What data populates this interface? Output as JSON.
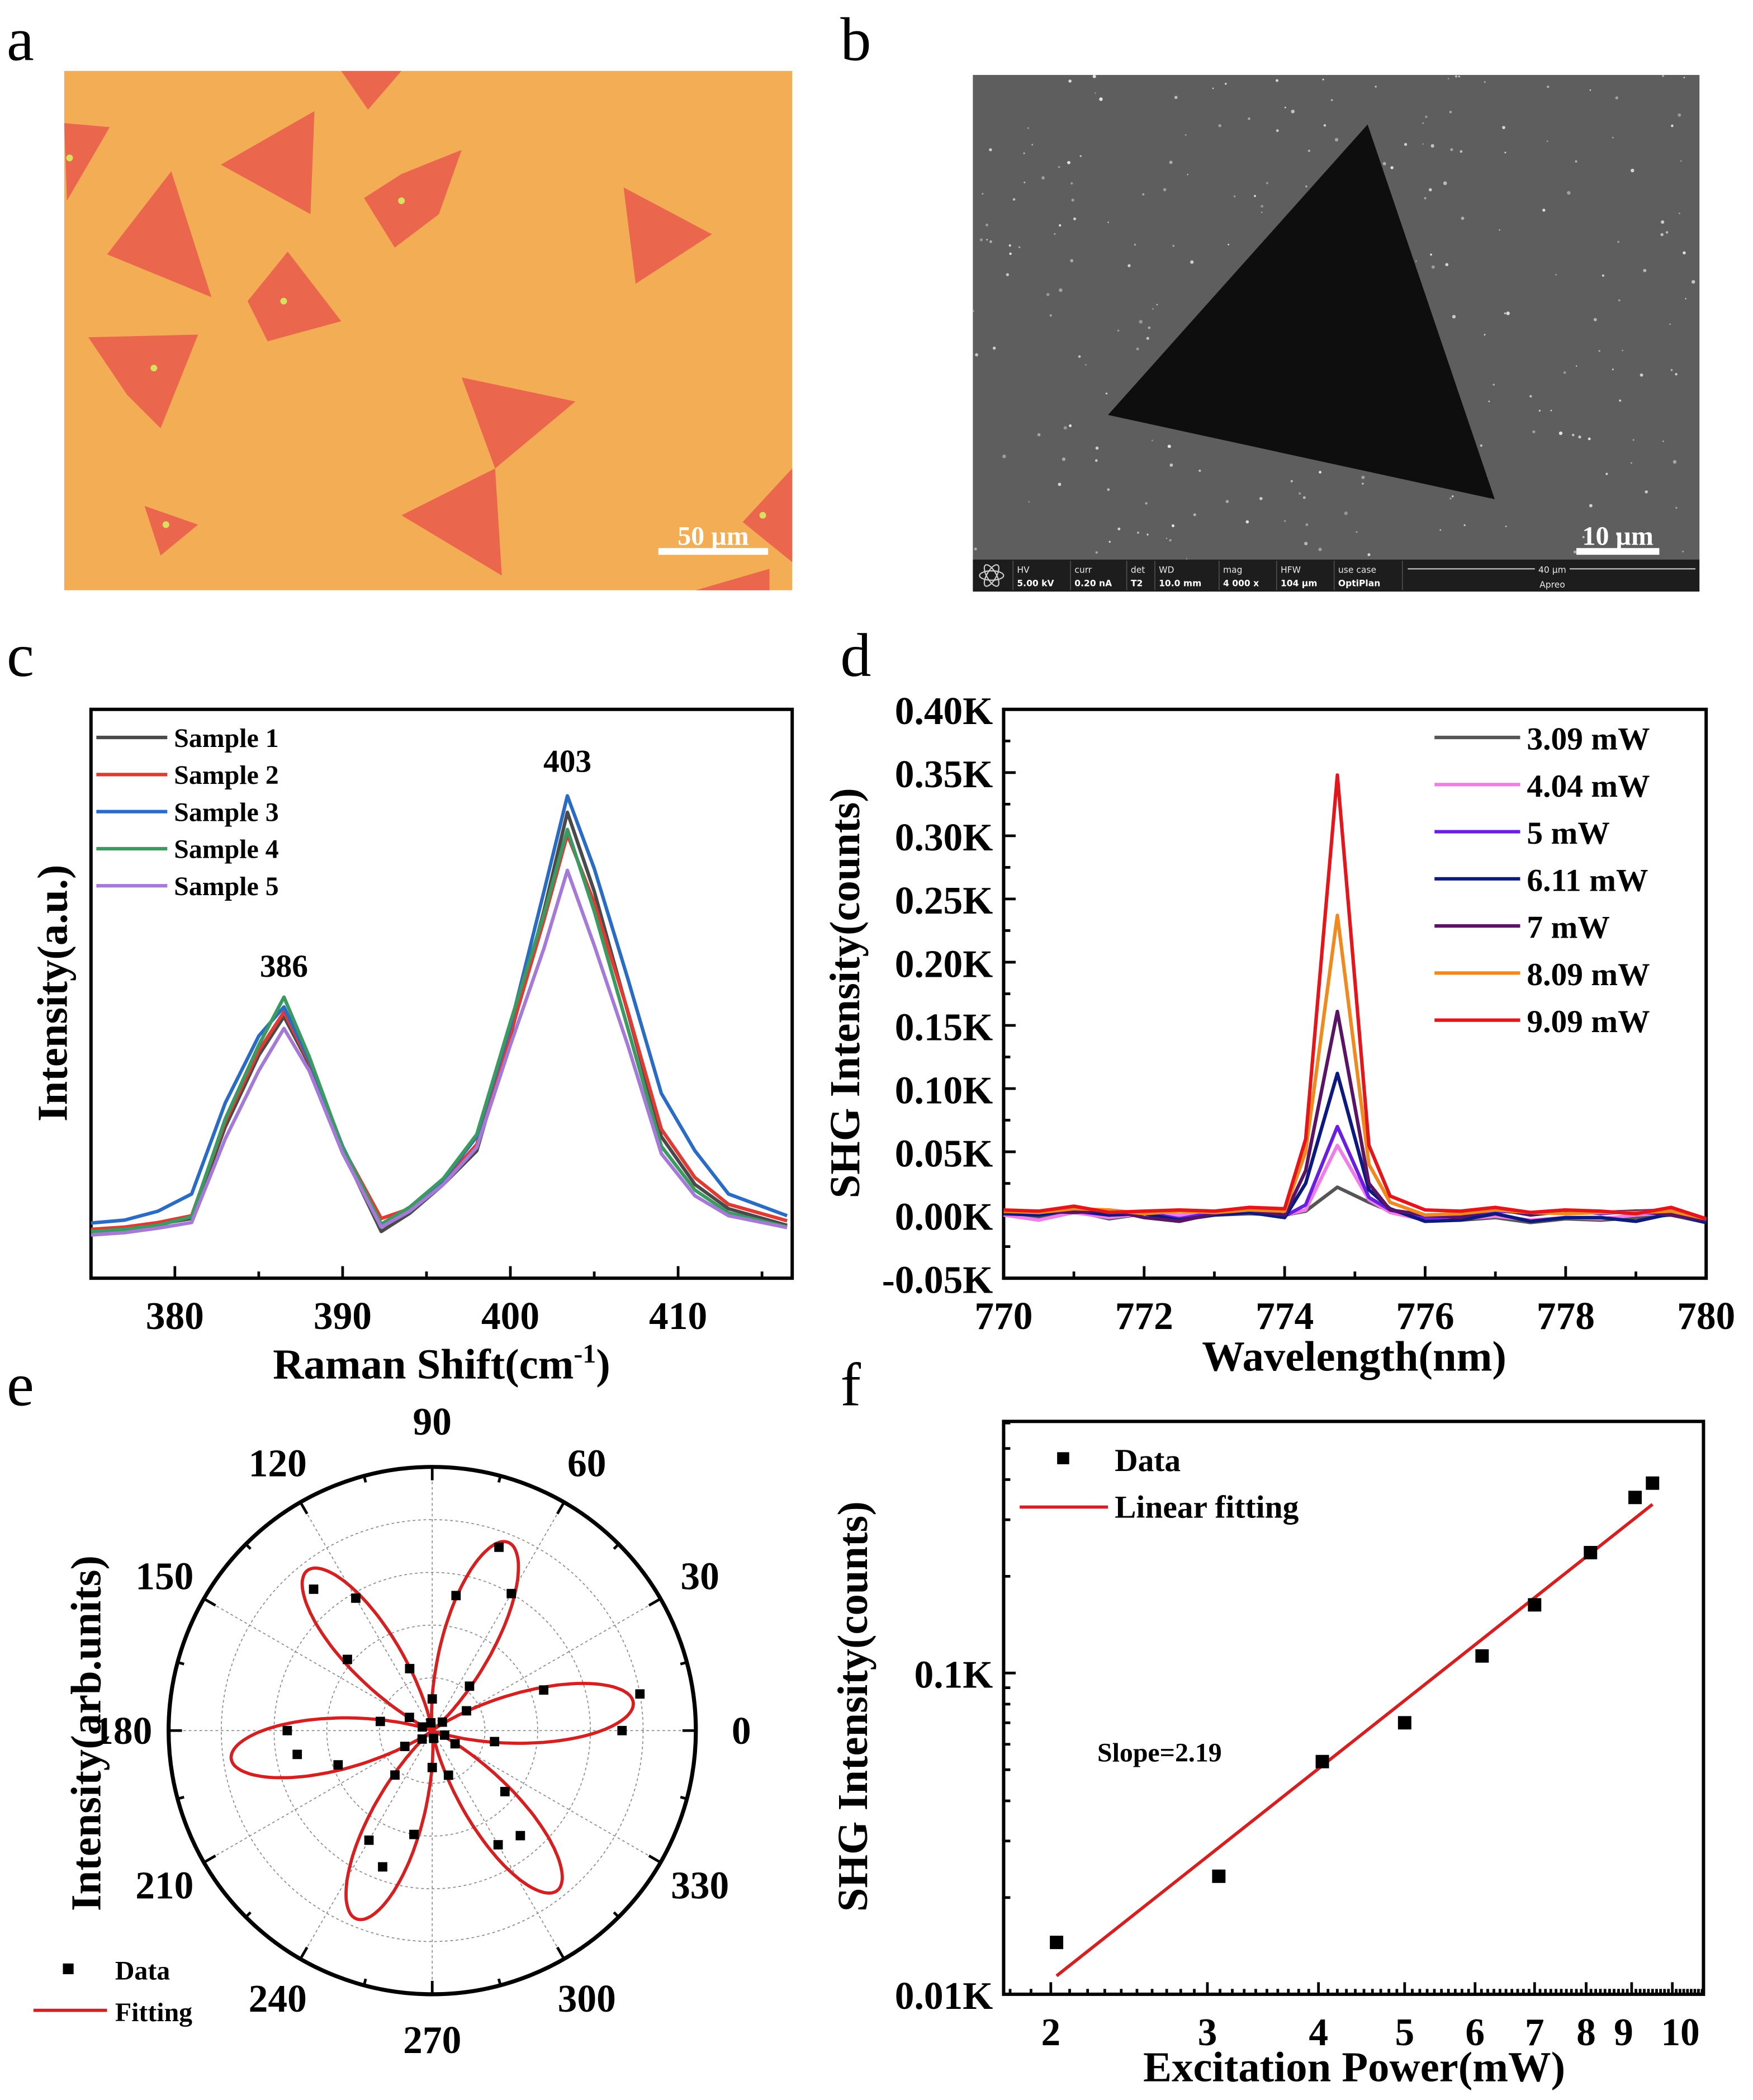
{
  "figure": {
    "panel_labels": [
      "a",
      "b",
      "c",
      "d",
      "e",
      "f"
    ],
    "panel_a": {
      "scale_bar": "50 µm",
      "background_color": "#F3AE55",
      "flake_color": "#E9604C"
    },
    "panel_b": {
      "scale_bar": "10 µm",
      "info_bar": {
        "fields": [
          {
            "label": "HV",
            "value": "5.00 kV"
          },
          {
            "label": "curr",
            "value": "0.20 nA"
          },
          {
            "label": "det",
            "value": "T2"
          },
          {
            "label": "WD",
            "value": "10.0 mm"
          },
          {
            "label": "mag",
            "value": "4 000 x"
          },
          {
            "label": "HFW",
            "value": "104 µm"
          },
          {
            "label": "use case",
            "value": "OptiPlan"
          }
        ],
        "scale": "40 µm",
        "instrument": "Apreo"
      }
    }
  },
  "chart_data": [
    {
      "panel": "c",
      "type": "line",
      "title": "",
      "xlabel": "Raman Shift(cm",
      "xlabel_sup": "-1",
      "xlabel_end": ")",
      "ylabel": "Intensity(a.u.)",
      "xlim": [
        375,
        416.8
      ],
      "ylim": [
        0,
        100
      ],
      "x_ticks": [
        {
          "value": 380,
          "label": "380"
        },
        {
          "value": 390,
          "label": "390"
        },
        {
          "value": 400,
          "label": "400"
        },
        {
          "value": 410,
          "label": "410"
        }
      ],
      "legend": "top-left",
      "x": [
        375,
        377,
        379,
        381,
        383,
        385,
        386.5,
        388,
        390,
        392.3,
        394,
        396,
        398,
        400,
        402,
        403.4,
        405,
        407,
        409,
        411,
        413,
        416.5
      ],
      "series": [
        {
          "name": "Sample 1",
          "color": "#4a4a4a",
          "values": [
            8.4,
            8.8,
            9.5,
            10.5,
            26.6,
            39.2,
            46.0,
            37.6,
            22.4,
            8.2,
            11.4,
            16.5,
            22.4,
            42.6,
            64.6,
            81.9,
            68.0,
            46.8,
            24.9,
            16.5,
            12.2,
            9.3
          ]
        },
        {
          "name": "Sample 2",
          "color": "#e03a32",
          "values": [
            8.6,
            9.0,
            9.8,
            11.0,
            27.5,
            40.0,
            46.8,
            38.0,
            23.0,
            10.5,
            12.2,
            17.0,
            23.5,
            43.0,
            63.0,
            78.0,
            66.0,
            47.0,
            26.2,
            17.7,
            13.0,
            10.1
          ]
        },
        {
          "name": "Sample 3",
          "color": "#2a6cc4",
          "values": [
            9.7,
            10.2,
            11.8,
            14.8,
            30.8,
            42.6,
            47.7,
            38.4,
            23.2,
            9.3,
            12.2,
            17.3,
            24.9,
            44.3,
            68.0,
            84.8,
            72.0,
            52.7,
            32.5,
            22.4,
            14.8,
            11.0
          ]
        },
        {
          "name": "Sample 4",
          "color": "#3a9a62",
          "values": [
            8.2,
            8.6,
            9.3,
            10.8,
            28.0,
            41.0,
            49.4,
            39.0,
            23.0,
            9.5,
            12.5,
            17.5,
            25.3,
            45.0,
            64.0,
            78.9,
            64.5,
            44.0,
            23.2,
            15.5,
            11.5,
            9.0
          ]
        },
        {
          "name": "Sample 5",
          "color": "#a57ad6",
          "values": [
            7.6,
            8.0,
            8.8,
            9.8,
            24.5,
            36.5,
            43.9,
            36.5,
            22.0,
            9.0,
            11.8,
            16.5,
            23.0,
            41.0,
            58.0,
            71.7,
            58.5,
            41.0,
            21.9,
            14.5,
            11.0,
            8.9
          ]
        }
      ],
      "annotations": [
        {
          "text": "386",
          "x": 386.5,
          "y": 53
        },
        {
          "text": "403",
          "x": 403.4,
          "y": 89
        }
      ]
    },
    {
      "panel": "d",
      "type": "line",
      "title": "",
      "xlabel": "Wavelength(nm)",
      "ylabel": "SHG Intensity(counts)",
      "xlim": [
        770,
        780
      ],
      "ylim": [
        -0.05,
        0.4
      ],
      "x_ticks": [
        {
          "value": 770,
          "label": "770"
        },
        {
          "value": 772,
          "label": "772"
        },
        {
          "value": 774,
          "label": "774"
        },
        {
          "value": 776,
          "label": "776"
        },
        {
          "value": 778,
          "label": "778"
        },
        {
          "value": 780,
          "label": "780"
        }
      ],
      "y_ticks": [
        {
          "value": -0.05,
          "label": "-0.05K"
        },
        {
          "value": 0.0,
          "label": "0.00K"
        },
        {
          "value": 0.05,
          "label": "0.05K"
        },
        {
          "value": 0.1,
          "label": "0.10K"
        },
        {
          "value": 0.15,
          "label": "0.15K"
        },
        {
          "value": 0.2,
          "label": "0.20K"
        },
        {
          "value": 0.25,
          "label": "0.25K"
        },
        {
          "value": 0.3,
          "label": "0.30K"
        },
        {
          "value": 0.35,
          "label": "0.35K"
        },
        {
          "value": 0.4,
          "label": "0.40K"
        }
      ],
      "legend": "top-right",
      "x": [
        770,
        770.5,
        771,
        771.5,
        772,
        772.5,
        773,
        773.5,
        774,
        774.3,
        774.75,
        775.2,
        775.5,
        776,
        776.5,
        777,
        777.5,
        778,
        778.5,
        779,
        779.5,
        780
      ],
      "series": [
        {
          "name": "3.09 mW",
          "color": "#555555",
          "values": [
            0.0,
            -0.002,
            0.003,
            -0.003,
            0.001,
            -0.001,
            0.0,
            0.001,
            0.0,
            0.003,
            0.022,
            0.01,
            0.003,
            -0.003,
            -0.004,
            -0.002,
            -0.006,
            -0.003,
            -0.004,
            -0.002,
            0.0,
            -0.006
          ]
        },
        {
          "name": "4.04 mW",
          "color": "#f07de8",
          "values": [
            0.0,
            -0.004,
            0.002,
            -0.002,
            0.001,
            0.0,
            0.001,
            0.002,
            0.0,
            0.004,
            0.055,
            0.012,
            0.002,
            -0.004,
            -0.003,
            -0.001,
            -0.004,
            -0.002,
            -0.003,
            0.0,
            0.002,
            -0.005
          ]
        },
        {
          "name": "5 mW",
          "color": "#6a1ee0",
          "values": [
            0.002,
            0.001,
            0.003,
            0.0,
            0.002,
            -0.003,
            0.002,
            0.003,
            -0.001,
            0.008,
            0.07,
            0.014,
            0.004,
            -0.002,
            -0.001,
            0.003,
            0.002,
            0.004,
            0.001,
            0.003,
            0.004,
            -0.004
          ]
        },
        {
          "name": "6.11 mW",
          "color": "#0c1a80",
          "values": [
            0.001,
            0.0,
            0.004,
            0.0,
            0.001,
            -0.004,
            0.0,
            0.002,
            -0.002,
            0.025,
            0.112,
            0.02,
            0.005,
            -0.005,
            -0.004,
            0.001,
            -0.005,
            -0.002,
            -0.002,
            -0.005,
            0.001,
            -0.006
          ]
        },
        {
          "name": "7 mW",
          "color": "#5a1466",
          "values": [
            0.002,
            0.003,
            0.002,
            0.004,
            -0.002,
            -0.005,
            0.001,
            0.004,
            0.0,
            0.035,
            0.161,
            0.025,
            0.004,
            0.0,
            -0.002,
            0.005,
            0.0,
            0.003,
            0.002,
            0.003,
            0.0,
            -0.004
          ]
        },
        {
          "name": "8.09 mW",
          "color": "#f08a1e",
          "values": [
            0.003,
            0.002,
            0.005,
            0.004,
            0.001,
            0.003,
            0.002,
            0.004,
            0.003,
            0.05,
            0.237,
            0.04,
            0.01,
            0.0,
            0.001,
            0.004,
            0.002,
            0.001,
            0.002,
            0.002,
            0.003,
            -0.003
          ]
        },
        {
          "name": "9.09 mW",
          "color": "#e4161c",
          "values": [
            0.004,
            0.003,
            0.007,
            0.002,
            0.003,
            0.004,
            0.003,
            0.006,
            0.005,
            0.06,
            0.348,
            0.055,
            0.015,
            0.004,
            0.003,
            0.006,
            0.002,
            0.004,
            0.003,
            0.001,
            0.006,
            -0.003
          ]
        }
      ]
    },
    {
      "panel": "e",
      "type": "polar",
      "title": "",
      "ylabel": "Intensity(arb.units)",
      "rlim": [
        0,
        1
      ],
      "angle_ticks": [
        {
          "value": 0,
          "label": "0"
        },
        {
          "value": 30,
          "label": "30"
        },
        {
          "value": 60,
          "label": "60"
        },
        {
          "value": 90,
          "label": "90"
        },
        {
          "value": 120,
          "label": "120"
        },
        {
          "value": 150,
          "label": "150"
        },
        {
          "value": 180,
          "label": "180"
        },
        {
          "value": 210,
          "label": "210"
        },
        {
          "value": 240,
          "label": "240"
        },
        {
          "value": 270,
          "label": "270"
        },
        {
          "value": 300,
          "label": "300"
        },
        {
          "value": 330,
          "label": "330"
        }
      ],
      "legend": "bottom-left",
      "legend_entries": [
        "Data",
        "Fitting"
      ],
      "data": {
        "theta": [
          0,
          10,
          20,
          30,
          40,
          50,
          60,
          70,
          80,
          90,
          100,
          110,
          120,
          130,
          140,
          150,
          160,
          170,
          180,
          190,
          200,
          210,
          220,
          230,
          240,
          250,
          260,
          270,
          280,
          290,
          300,
          310,
          320,
          330,
          340,
          350
        ],
        "r": [
          0.72,
          0.8,
          0.45,
          0.15,
          0.05,
          0.22,
          0.6,
          0.74,
          0.52,
          0.12,
          0.03,
          0.25,
          0.58,
          0.7,
          0.42,
          0.1,
          0.04,
          0.2,
          0.55,
          0.52,
          0.38,
          0.12,
          0.05,
          0.22,
          0.48,
          0.55,
          0.4,
          0.14,
          0.03,
          0.18,
          0.5,
          0.52,
          0.36,
          0.1,
          0.05,
          0.24
        ]
      },
      "fit": {
        "amplitude": 0.77,
        "phase_deg": 8,
        "fold": 3,
        "color": "#d42020"
      }
    },
    {
      "panel": "f",
      "type": "scatter",
      "title": "",
      "xlabel": "Excitation Power(mW)",
      "ylabel": "SHG Intensity(counts)",
      "xscale": "log",
      "yscale": "log",
      "xlim": [
        1.77,
        10.84
      ],
      "ylim": [
        0.01,
        0.607
      ],
      "x_ticks": [
        {
          "value": 2,
          "label": "2"
        },
        {
          "value": 3,
          "label": "3"
        },
        {
          "value": 4,
          "label": "4"
        },
        {
          "value": 5,
          "label": "5"
        },
        {
          "value": 6,
          "label": "6"
        },
        {
          "value": 7,
          "label": "7"
        },
        {
          "value": 8,
          "label": "8"
        },
        {
          "value": 9,
          "label": "9"
        },
        {
          "value": 10,
          "label": "10"
        }
      ],
      "y_ticks": [
        {
          "value": 0.01,
          "label": "0.01K"
        },
        {
          "value": 0.1,
          "label": "0.1K"
        }
      ],
      "legend": "top-left",
      "legend_entries": [
        "Data",
        "Linear fitting"
      ],
      "data": {
        "x": [
          2.03,
          3.09,
          4.04,
          5.0,
          6.11,
          7.0,
          8.09,
          9.08,
          9.5
        ],
        "y": [
          0.0145,
          0.0233,
          0.053,
          0.07,
          0.113,
          0.163,
          0.237,
          0.352,
          0.39
        ]
      },
      "fit": {
        "slope": 2.19,
        "prefactor": 0.00242,
        "x_range": [
          2.03,
          9.5
        ],
        "color": "#d42020"
      },
      "annotation": "Slope=2.19"
    }
  ]
}
